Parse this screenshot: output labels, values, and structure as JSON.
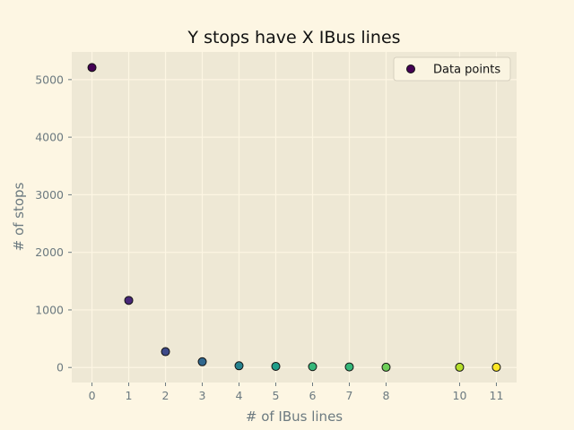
{
  "chart_data": {
    "type": "scatter",
    "title": "Y stops have X IBus lines",
    "xlabel": "# of IBus lines",
    "ylabel": "# of stops",
    "xlim": [
      -0.55,
      11.55
    ],
    "ylim": [
      -261,
      5480
    ],
    "xticks": [
      0,
      1,
      2,
      3,
      4,
      5,
      6,
      7,
      8,
      10,
      11
    ],
    "yticks": [
      0,
      1000,
      2000,
      3000,
      4000,
      5000
    ],
    "grid": true,
    "legend": {
      "position": "top-right",
      "label": "Data points"
    },
    "points": [
      {
        "x": 0,
        "y": 5210,
        "color": "#440154"
      },
      {
        "x": 1,
        "y": 1165,
        "color": "#482878"
      },
      {
        "x": 2,
        "y": 275,
        "color": "#3e4a89"
      },
      {
        "x": 3,
        "y": 100,
        "color": "#31688e"
      },
      {
        "x": 4,
        "y": 30,
        "color": "#26828e"
      },
      {
        "x": 5,
        "y": 20,
        "color": "#1f9e89"
      },
      {
        "x": 6,
        "y": 15,
        "color": "#35b779"
      },
      {
        "x": 7,
        "y": 10,
        "color": "#35b779"
      },
      {
        "x": 8,
        "y": 5,
        "color": "#6ece58"
      },
      {
        "x": 10,
        "y": 5,
        "color": "#b5de2b"
      },
      {
        "x": 11,
        "y": 5,
        "color": "#fde725"
      }
    ],
    "colors": {
      "figure_bg": "#fdf6e3",
      "axes_bg": "#eee8d5",
      "grid": "#fdf6e3",
      "tick_text": "#6c7a80",
      "marker_edge": "#111111"
    }
  }
}
